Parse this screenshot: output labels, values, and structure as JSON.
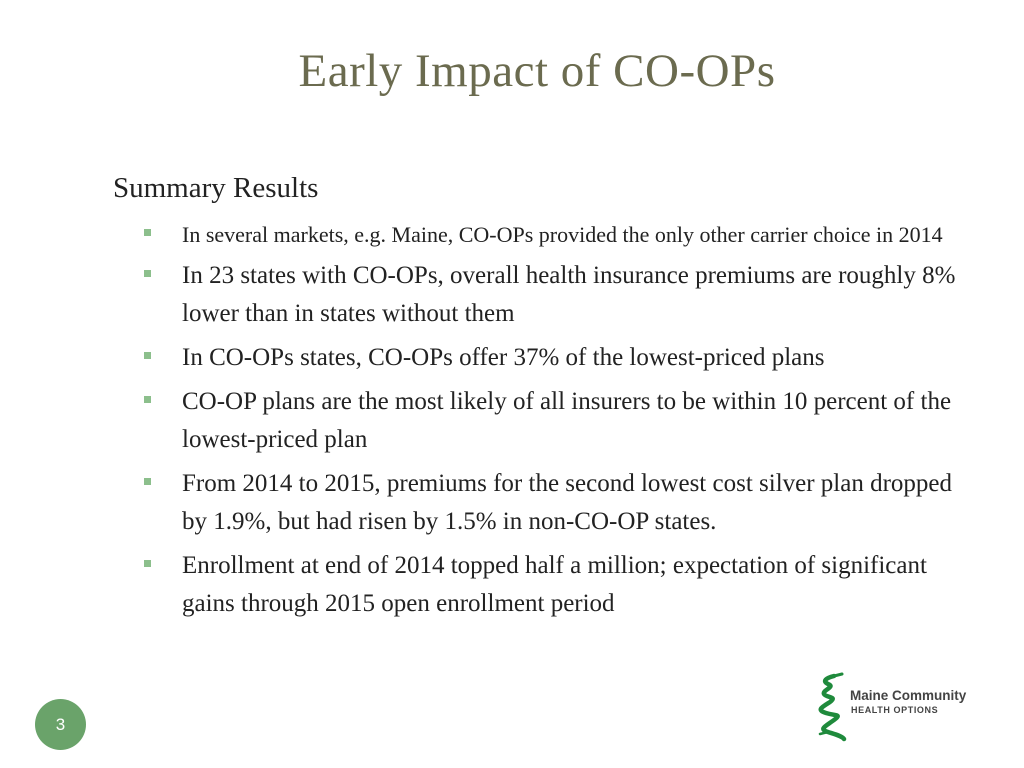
{
  "slide": {
    "title": "Early Impact of CO-OPs",
    "subheading": "Summary Results",
    "bullets": [
      "In several markets, e.g. Maine, CO-OPs provided the only other carrier choice in 2014",
      "In 23 states with CO-OPs, overall health insurance premiums are roughly 8% lower than in states without them",
      "In CO-OPs states, CO-OPs offer 37% of the lowest-priced plans",
      "CO-OP plans are the most likely of all insurers to be within 10 percent  of the lowest-priced plan",
      "From 2014 to 2015, premiums for the second lowest cost silver plan dropped by 1.9%, but had risen by 1.5% in non-CO-OP states.",
      "Enrollment at end of 2014 topped half a million; expectation of significant gains through 2015 open enrollment period"
    ],
    "page_number": "3"
  },
  "logo": {
    "name": "Maine Community",
    "tagline": "HEALTH OPTIONS",
    "icon": "maine-community-health-options-logo-icon"
  },
  "colors": {
    "title": "#6b6b4f",
    "bullet_marker": "#8cbf8c",
    "page_badge": "#6aa36a",
    "logo_green": "#1f8a3c"
  }
}
